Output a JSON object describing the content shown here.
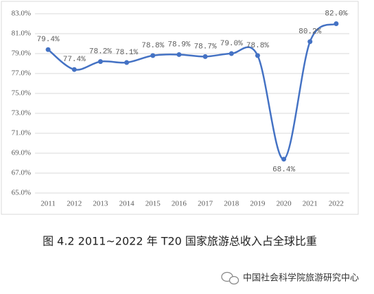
{
  "chart_data": {
    "type": "line",
    "caption": "图 4.2   2011~2022 年 T20 国家旅游总收入占全球比重",
    "watermark": "中国社会科学院旅游研究中心",
    "categories": [
      "2011",
      "2012",
      "2013",
      "2014",
      "2015",
      "2016",
      "2017",
      "2018",
      "2019",
      "2020",
      "2021",
      "2022"
    ],
    "values": [
      79.4,
      77.4,
      78.2,
      78.1,
      78.8,
      78.9,
      78.7,
      79.0,
      78.8,
      68.4,
      80.2,
      82.0
    ],
    "value_labels": [
      "79.4%",
      "77.4%",
      "78.2%",
      "78.1%",
      "78.8%",
      "78.9%",
      "78.7%",
      "79.0%",
      "78.8%",
      "68.4%",
      "80.2%",
      "82.0%"
    ],
    "color": "#4472c4",
    "ylim": [
      65,
      83
    ],
    "yticks": [
      {
        "value": 65,
        "label": "65.0%"
      },
      {
        "value": 67,
        "label": "67.0%"
      },
      {
        "value": 69,
        "label": "69.0%"
      },
      {
        "value": 71,
        "label": "71.0%"
      },
      {
        "value": 73,
        "label": "73.0%"
      },
      {
        "value": 75,
        "label": "75.0%"
      },
      {
        "value": 77,
        "label": "77.0%"
      },
      {
        "value": 79,
        "label": "79.0%"
      },
      {
        "value": 81,
        "label": "81.0%"
      },
      {
        "value": 83,
        "label": "83.0%"
      }
    ],
    "grid": true
  }
}
